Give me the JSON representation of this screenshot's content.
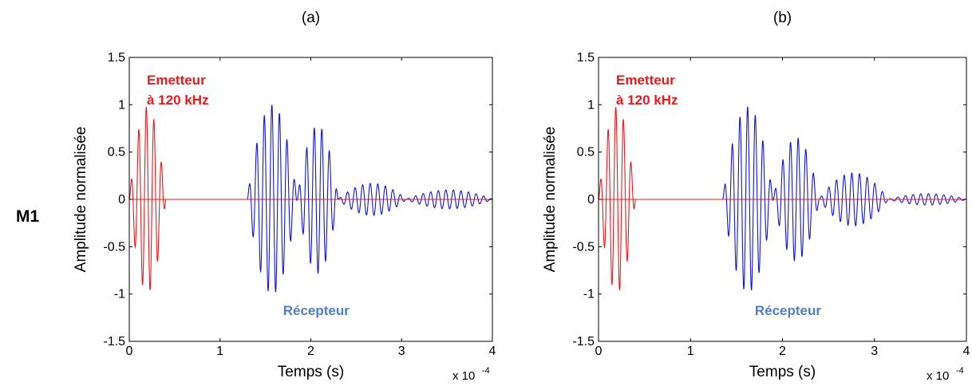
{
  "row_label": "M1",
  "colors": {
    "emitter": "#e8191c",
    "receiver": "#1414d2",
    "baseline": "#e8191c",
    "receiver_label": "#4f7fc2",
    "axis": "#000000"
  },
  "chart_data": [
    {
      "type": "line",
      "title": "(a)",
      "xlabel": "Temps (s)",
      "ylabel": "Amplitude normalisée",
      "x_multiplier_label": "x 10",
      "x_multiplier_exponent": "-4",
      "xlim": [
        0,
        4
      ],
      "ylim": [
        -1.5,
        1.5
      ],
      "xticks": [
        "0",
        "1",
        "2",
        "3",
        "4"
      ],
      "yticks": [
        "-1.5",
        "-1",
        "-0.5",
        "0",
        "0.5",
        "1",
        "1.5"
      ],
      "grid": false,
      "annotations": {
        "emitter_line1": "Emetteur",
        "emitter_line2": "à 120 kHz",
        "receiver": "Récepteur"
      },
      "series": [
        {
          "role": "emitter",
          "freq_per_1e-4s": 12,
          "packets": [
            {
              "start": 0.0,
              "end": 0.4,
              "amp": 0.98
            }
          ]
        },
        {
          "role": "receiver",
          "freq_per_1e-4s": 12,
          "packets": [
            {
              "start": 1.3,
              "end": 1.85,
              "amp": 1.0
            },
            {
              "start": 1.85,
              "end": 2.3,
              "amp": 0.78
            },
            {
              "start": 2.3,
              "end": 3.05,
              "amp": 0.17
            },
            {
              "start": 3.05,
              "end": 4.0,
              "amp": 0.1
            }
          ]
        }
      ]
    },
    {
      "type": "line",
      "title": "(b)",
      "xlabel": "Temps (s)",
      "ylabel": "Amplitude normalisée",
      "x_multiplier_label": "x 10",
      "x_multiplier_exponent": "-4",
      "xlim": [
        0,
        4
      ],
      "ylim": [
        -1.5,
        1.5
      ],
      "xticks": [
        "0",
        "1",
        "2",
        "3",
        "4"
      ],
      "yticks": [
        "-1.5",
        "-1",
        "-0.5",
        "0",
        "0.5",
        "1",
        "1.5"
      ],
      "grid": false,
      "annotations": {
        "emitter_line1": "Emetteur",
        "emitter_line2": "à 120 kHz",
        "receiver": "Récepteur"
      },
      "series": [
        {
          "role": "emitter",
          "freq_per_1e-4s": 12,
          "packets": [
            {
              "start": 0.0,
              "end": 0.4,
              "amp": 0.98
            }
          ]
        },
        {
          "role": "receiver",
          "freq_per_1e-4s": 12,
          "packets": [
            {
              "start": 1.35,
              "end": 1.9,
              "amp": 0.98
            },
            {
              "start": 1.9,
              "end": 2.4,
              "amp": 0.65
            },
            {
              "start": 2.4,
              "end": 3.15,
              "amp": 0.28
            },
            {
              "start": 3.15,
              "end": 4.0,
              "amp": 0.06
            }
          ]
        }
      ]
    }
  ]
}
